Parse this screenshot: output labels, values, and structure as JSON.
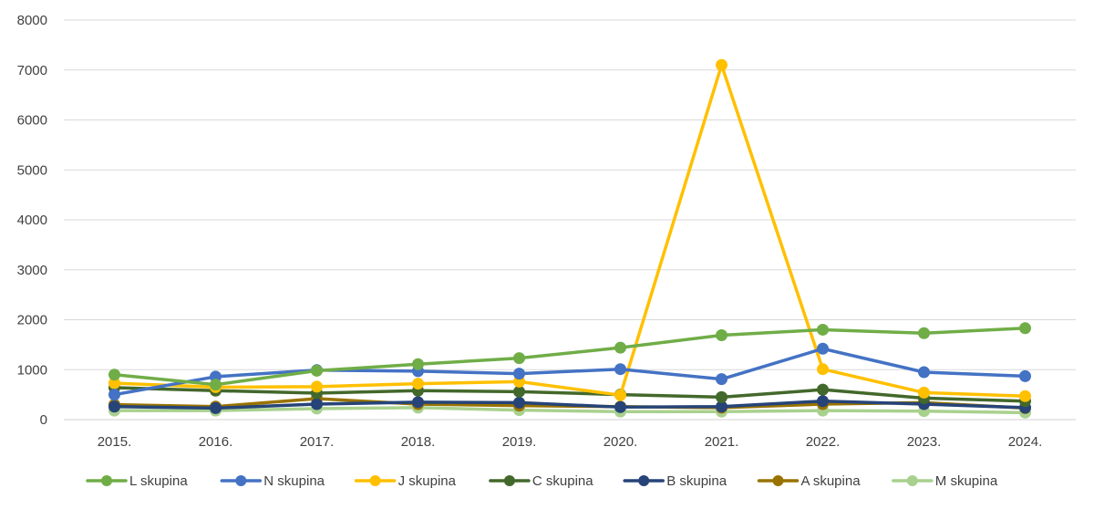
{
  "chart_data": {
    "type": "line",
    "categories": [
      "2015.",
      "2016.",
      "2017.",
      "2018.",
      "2019.",
      "2020.",
      "2021.",
      "2022.",
      "2023.",
      "2024."
    ],
    "ylim": [
      0,
      8000
    ],
    "yticks": [
      0,
      1000,
      2000,
      3000,
      4000,
      5000,
      6000,
      7000,
      8000
    ],
    "ytick_labels": [
      "0",
      "1000",
      "2000",
      "3000",
      "4000",
      "5000",
      "6000",
      "7000",
      "8000"
    ],
    "grid": true,
    "legend_position": "bottom",
    "series": [
      {
        "name": "L skupina",
        "color": "#70AD47",
        "values": [
          900,
          700,
          980,
          1110,
          1230,
          1440,
          1690,
          1800,
          1730,
          1830
        ]
      },
      {
        "name": "N skupina",
        "color": "#4472C4",
        "values": [
          500,
          860,
          990,
          970,
          920,
          1010,
          810,
          1420,
          950,
          870
        ]
      },
      {
        "name": "J skupina",
        "color": "#FFC000",
        "values": [
          730,
          650,
          660,
          720,
          760,
          490,
          7100,
          1010,
          540,
          470
        ]
      },
      {
        "name": "C skupina",
        "color": "#43682B",
        "values": [
          640,
          580,
          530,
          580,
          560,
          500,
          450,
          600,
          430,
          370
        ]
      },
      {
        "name": "B skupina",
        "color": "#264478",
        "values": [
          260,
          230,
          310,
          350,
          340,
          250,
          260,
          370,
          310,
          240
        ]
      },
      {
        "name": "A skupina",
        "color": "#997300",
        "values": [
          300,
          260,
          420,
          310,
          280,
          260,
          240,
          310,
          340,
          230
        ]
      },
      {
        "name": "M skupina",
        "color": "#A9D18E",
        "values": [
          180,
          180,
          220,
          240,
          190,
          160,
          160,
          180,
          170,
          140
        ]
      }
    ]
  }
}
